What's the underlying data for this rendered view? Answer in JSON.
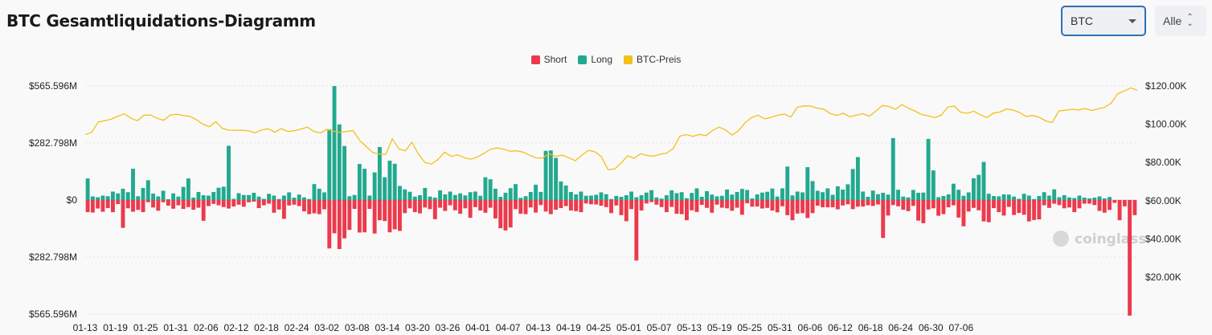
{
  "header": {
    "title": "BTC Gesamtliquidations-Diagramm",
    "coin_select_value": "BTC",
    "range_select_value": "Alle"
  },
  "colors": {
    "short": "#ec3a4c",
    "long": "#22a98f",
    "price": "#f2c11a"
  },
  "watermark": "coinglass",
  "chart_data": {
    "type": "bar",
    "legend": [
      "Short",
      "Long",
      "BTC-Preis"
    ],
    "legend_position": "top-center",
    "y_left": {
      "ticks": [
        565.596,
        282.798,
        0,
        -282.798,
        -565.596
      ],
      "tick_labels": [
        "$565.596M",
        "$282.798M",
        "$0",
        "$282.798M",
        "$565.596M"
      ],
      "range": [
        -565.596,
        565.596
      ],
      "unit": "M USD"
    },
    "y_right": {
      "ticks": [
        120000,
        100000,
        80000,
        60000,
        40000,
        20000
      ],
      "tick_labels": [
        "$120.00K",
        "$100.00K",
        "$80.00K",
        "$60.00K",
        "$40.00K",
        "$20.00K"
      ],
      "range": [
        0,
        120000
      ]
    },
    "x_tick_labels": [
      "01-13",
      "01-19",
      "01-25",
      "01-31",
      "02-06",
      "02-12",
      "02-18",
      "02-24",
      "03-02",
      "03-08",
      "03-14",
      "03-20",
      "03-26",
      "04-01",
      "04-07",
      "04-13",
      "04-19",
      "04-25",
      "05-01",
      "05-07",
      "05-13",
      "05-19",
      "05-25",
      "05-31",
      "06-06",
      "06-12",
      "06-18",
      "06-24",
      "06-30",
      "07-06"
    ],
    "x_tick_step_days": 6,
    "start_date": "2025-01-13",
    "long_values_M": [
      107,
      18,
      14,
      22,
      19,
      42,
      33,
      56,
      39,
      155,
      19,
      60,
      98,
      32,
      18,
      46,
      4,
      33,
      17,
      65,
      107,
      12,
      40,
      24,
      22,
      40,
      61,
      66,
      269,
      6,
      34,
      25,
      25,
      36,
      17,
      6,
      31,
      22,
      5,
      22,
      38,
      12,
      27,
      13,
      5,
      79,
      56,
      38,
      351,
      565,
      375,
      268,
      19,
      25,
      179,
      155,
      22,
      137,
      263,
      113,
      195,
      180,
      70,
      53,
      41,
      17,
      24,
      60,
      17,
      12,
      48,
      28,
      42,
      25,
      33,
      23,
      39,
      42,
      21,
      113,
      103,
      56,
      16,
      36,
      59,
      79,
      11,
      19,
      40,
      76,
      40,
      244,
      246,
      209,
      92,
      72,
      40,
      28,
      42,
      21,
      22,
      26,
      38,
      29,
      5,
      20,
      16,
      24,
      42,
      14,
      24,
      37,
      49,
      13,
      7,
      24,
      48,
      34,
      39,
      9,
      35,
      58,
      16,
      44,
      27,
      18,
      21,
      52,
      27,
      40,
      55,
      50,
      8,
      28,
      37,
      41,
      57,
      17,
      58,
      166,
      23,
      42,
      38,
      163,
      94,
      46,
      39,
      58,
      26,
      68,
      52,
      78,
      154,
      213,
      42,
      16,
      47,
      29,
      36,
      27,
      307,
      51,
      17,
      13,
      50,
      36,
      37,
      303,
      147,
      14,
      20,
      28,
      81,
      51,
      21,
      38,
      108,
      125,
      189,
      31,
      20,
      18,
      28,
      27,
      17,
      6,
      31,
      22,
      5,
      20,
      39,
      22,
      53,
      14,
      24,
      13,
      10,
      22,
      12,
      8,
      12,
      18,
      8,
      15
    ],
    "short_values_M": [
      60,
      62,
      42,
      58,
      40,
      60,
      20,
      138,
      41,
      58,
      49,
      60,
      11,
      37,
      53,
      11,
      28,
      43,
      26,
      44,
      35,
      48,
      38,
      103,
      30,
      19,
      26,
      35,
      42,
      32,
      23,
      33,
      11,
      8,
      40,
      26,
      18,
      63,
      47,
      93,
      27,
      23,
      30,
      56,
      70,
      66,
      70,
      46,
      240,
      165,
      243,
      190,
      148,
      44,
      161,
      160,
      44,
      166,
      100,
      104,
      160,
      145,
      153,
      65,
      41,
      60,
      66,
      37,
      45,
      95,
      38,
      54,
      26,
      51,
      68,
      41,
      88,
      35,
      52,
      63,
      38,
      91,
      140,
      151,
      136,
      45,
      68,
      70,
      37,
      62,
      25,
      57,
      70,
      48,
      40,
      30,
      52,
      55,
      60,
      17,
      21,
      22,
      28,
      35,
      65,
      27,
      75,
      105,
      45,
      300,
      52,
      17,
      10,
      23,
      35,
      60,
      34,
      68,
      70,
      100,
      51,
      59,
      24,
      39,
      63,
      23,
      38,
      41,
      53,
      38,
      73,
      16,
      33,
      32,
      42,
      39,
      52,
      61,
      31,
      75,
      100,
      67,
      65,
      89,
      65,
      28,
      36,
      36,
      36,
      46,
      27,
      21,
      45,
      33,
      32,
      26,
      29,
      22,
      188,
      77,
      25,
      31,
      48,
      55,
      29,
      102,
      115,
      47,
      41,
      78,
      70,
      36,
      26,
      87,
      130,
      57,
      39,
      51,
      106,
      110,
      40,
      60,
      77,
      34,
      74,
      64,
      73,
      106,
      99,
      96,
      26,
      39,
      18,
      25,
      41,
      37,
      60,
      41,
      18,
      18,
      25,
      54,
      63,
      49,
      14,
      100,
      31,
      573,
      75
    ],
    "price_values": [
      94500,
      95800,
      101200,
      101800,
      102600,
      104200,
      105400,
      103100,
      101800,
      104700,
      104800,
      103100,
      102000,
      104800,
      105200,
      104600,
      104100,
      102400,
      100100,
      98700,
      101300,
      97800,
      96900,
      96800,
      96800,
      96500,
      95500,
      97000,
      97600,
      95800,
      97700,
      96200,
      96600,
      97400,
      98500,
      96200,
      95400,
      97300,
      96300,
      95700,
      96200,
      96700,
      91500,
      88300,
      85200,
      84400,
      84300,
      92300,
      87100,
      86100,
      90600,
      84300,
      79900,
      79200,
      81600,
      85400,
      83200,
      84000,
      82500,
      81700,
      82800,
      84700,
      86800,
      87600,
      86900,
      85900,
      86100,
      85400,
      83800,
      82400,
      82300,
      84600,
      83200,
      83800,
      82500,
      80900,
      83800,
      86300,
      85600,
      83000,
      76200,
      76500,
      79600,
      83500,
      82200,
      84600,
      83600,
      83300,
      84300,
      84900,
      87300,
      93800,
      94600,
      93600,
      94700,
      94000,
      96700,
      98500,
      97000,
      94300,
      96700,
      100900,
      103500,
      104700,
      102800,
      103600,
      104700,
      105300,
      103800,
      108900,
      109600,
      109500,
      108400,
      107900,
      105600,
      104600,
      105700,
      103900,
      104700,
      105500,
      104200,
      106900,
      109800,
      109300,
      107800,
      110200,
      108300,
      106800,
      105100,
      104400,
      103400,
      104700,
      108900,
      109500,
      106200,
      105700,
      106800,
      104900,
      103500,
      105800,
      106400,
      108000,
      107400,
      106100,
      104000,
      104600,
      103600,
      101700,
      100900,
      106900,
      107300,
      107800,
      107400,
      108200,
      107200,
      108000,
      108800,
      111000,
      115900,
      117400,
      119000,
      117800
    ]
  }
}
